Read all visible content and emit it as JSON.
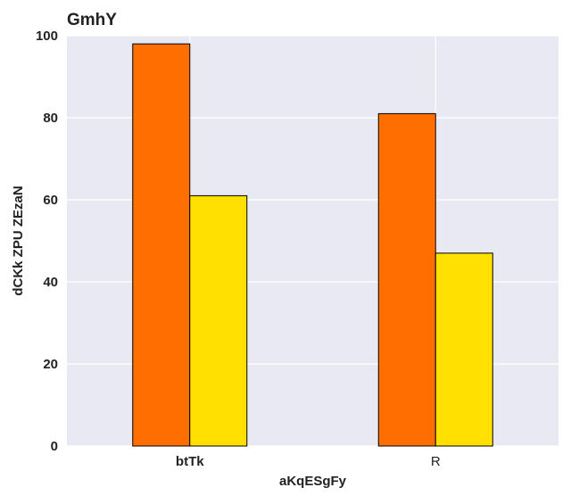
{
  "chart_data": {
    "type": "bar",
    "title": "GmhY",
    "xlabel": "aKqESgFy",
    "ylabel": "dCKk ZPU ZEzaN",
    "categories": [
      "btTk",
      "R"
    ],
    "series": [
      {
        "values": [
          98,
          81
        ],
        "color": "#ff6e00"
      },
      {
        "values": [
          61,
          47
        ],
        "color": "#ffe000"
      }
    ],
    "ylim": [
      0,
      100
    ],
    "yticks": [
      0,
      20,
      40,
      60,
      80,
      100
    ],
    "grid": true,
    "background": "#e9e9f4",
    "legend": "none"
  }
}
